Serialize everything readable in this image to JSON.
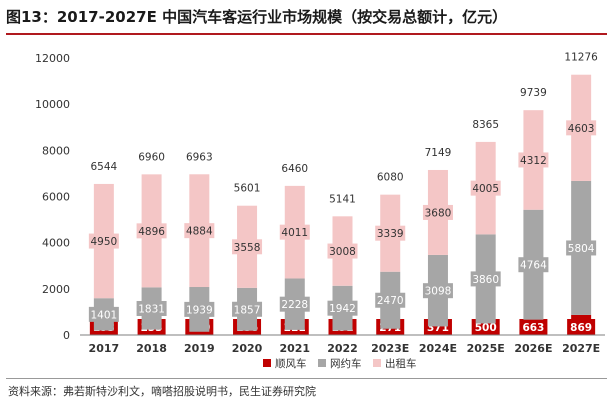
{
  "title": "图13：2017-2027E 中国汽车客运行业市场规模（按交易总额计，亿元）",
  "source": "资料来源：弗若斯特沙利文，嘀嗒招股说明书，民生证券研究院",
  "colors": {
    "shunfeng": "#c00000",
    "wangyue": "#a6a6a6",
    "chuzu": "#f4c6c6",
    "accent": "#b0191e"
  },
  "chart_data": {
    "type": "bar",
    "stacked": true,
    "categories": [
      "2017",
      "2018",
      "2019",
      "2020",
      "2021",
      "2022",
      "2023E",
      "2024E",
      "2025E",
      "2026E",
      "2027E"
    ],
    "series": [
      {
        "name": "顺风车",
        "color": "#c00000",
        "values": [
          193,
          233,
          140,
          186,
          221,
          191,
          271,
          371,
          500,
          663,
          869
        ]
      },
      {
        "name": "网约车",
        "color": "#a6a6a6",
        "values": [
          1401,
          1831,
          1939,
          1857,
          2228,
          1942,
          2470,
          3098,
          3860,
          4764,
          5804
        ]
      },
      {
        "name": "出租车",
        "color": "#f4c6c6",
        "values": [
          4950,
          4896,
          4884,
          3558,
          4011,
          3008,
          3339,
          3680,
          4005,
          4312,
          4603
        ]
      }
    ],
    "totals": [
      6544,
      6960,
      6963,
      5601,
      6460,
      5141,
      6080,
      7149,
      8365,
      9739,
      11276
    ],
    "yticks": [
      "0",
      "2000",
      "4000",
      "6000",
      "8000",
      "10000",
      "12000"
    ],
    "ylim": [
      0,
      12000
    ],
    "grid": false,
    "legend_position": "bottom-center"
  }
}
